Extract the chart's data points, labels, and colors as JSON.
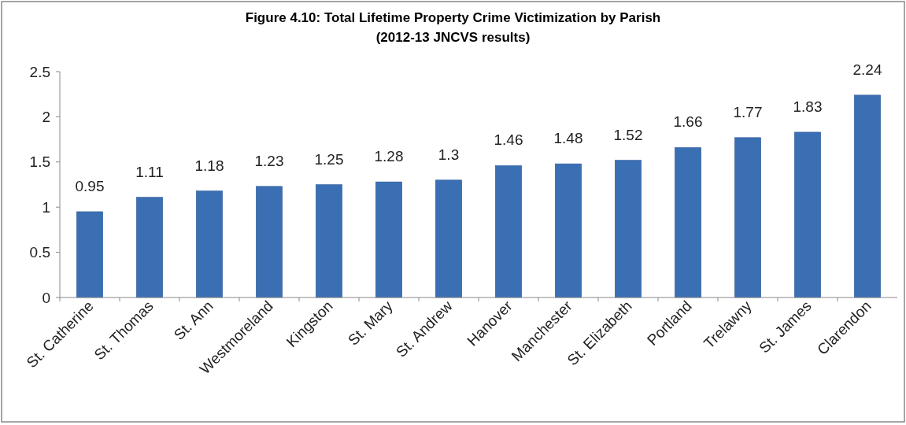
{
  "chart_data": {
    "type": "bar",
    "title": "Figure 4.10: Total Lifetime Property Crime Victimization by Parish",
    "subtitle": "(2012-13 JNCVS results)",
    "categories": [
      "St. Catherine",
      "St. Thomas",
      "St. Ann",
      "Westmoreland",
      "Kingston",
      "St. Mary",
      "St. Andrew",
      "Hanover",
      "Manchester",
      "St. Elizabeth",
      "Portland",
      "Trelawny",
      "St. James",
      "Clarendon"
    ],
    "values": [
      0.95,
      1.11,
      1.18,
      1.23,
      1.25,
      1.28,
      1.3,
      1.46,
      1.48,
      1.52,
      1.66,
      1.77,
      1.83,
      2.24
    ],
    "color": "#3b6fb3",
    "ylim": [
      0,
      2.5
    ],
    "yticks": [
      0,
      0.5,
      1,
      1.5,
      2,
      2.5
    ],
    "data_labels": true,
    "grid": false
  }
}
